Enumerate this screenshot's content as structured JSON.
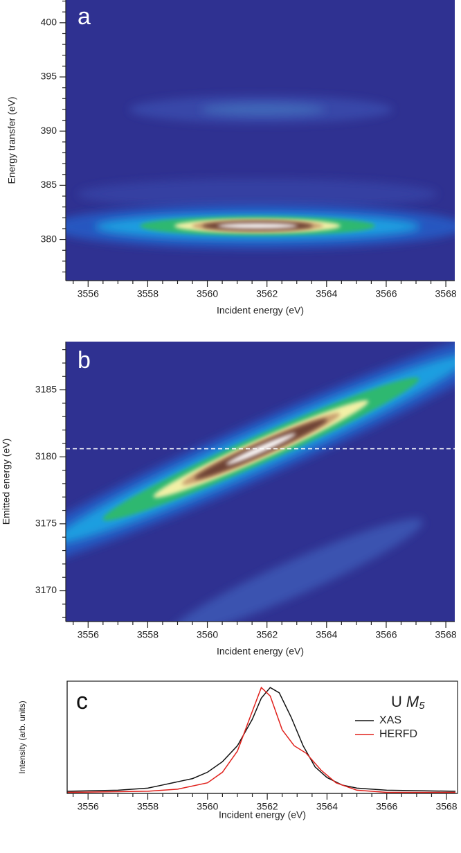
{
  "chart_data": [
    {
      "type": "heatmap",
      "panel_label": "a",
      "xlabel": "Incident energy (eV)",
      "ylabel": "Energy transfer (eV)",
      "xlim": [
        3555.25,
        3568.3
      ],
      "xticks": [
        3556,
        3558,
        3560,
        3562,
        3564,
        3566,
        3568
      ],
      "xminorticks": [
        3555.5,
        3556.5,
        3557,
        3557.5,
        3558.5,
        3559,
        3559.5,
        3560.5,
        3561,
        3561.5,
        3562.5,
        3563,
        3563.5,
        3564.5,
        3565,
        3565.5,
        3566.5,
        3567,
        3567.5
      ],
      "ylim": [
        376.2,
        402.1
      ],
      "yticks": [
        380,
        385,
        390,
        395,
        400
      ],
      "yminorticks": [
        377,
        378,
        379,
        381,
        382,
        383,
        384,
        386,
        387,
        388,
        389,
        391,
        392,
        393,
        394,
        396,
        397,
        398,
        399,
        401,
        402
      ]
    },
    {
      "type": "heatmap",
      "panel_label": "b",
      "xlabel": "Incident energy (eV)",
      "ylabel": "Emitted energy (eV)",
      "xlim": [
        3555.25,
        3568.3
      ],
      "xticks": [
        3556,
        3558,
        3560,
        3562,
        3564,
        3566,
        3568
      ],
      "xminorticks": [
        3555.5,
        3556.5,
        3557,
        3557.5,
        3558.5,
        3559,
        3559.5,
        3560.5,
        3561,
        3561.5,
        3562.5,
        3563,
        3563.5,
        3564.5,
        3565,
        3565.5,
        3566.5,
        3567,
        3567.5
      ],
      "ylim": [
        3167.7,
        3188.6
      ],
      "yticks": [
        3170,
        3175,
        3180,
        3185
      ],
      "yminorticks": [
        3168,
        3169,
        3171,
        3172,
        3173,
        3174,
        3176,
        3177,
        3178,
        3179,
        3181,
        3182,
        3183,
        3184,
        3186,
        3187,
        3188
      ],
      "hline": 3180.6
    },
    {
      "type": "line",
      "panel_label": "c",
      "xlabel": "Incident energy (eV)",
      "ylabel": "Intensity (arb. units)",
      "annotation_parts": [
        "U",
        "M",
        "5"
      ],
      "xlim": [
        3555.3,
        3568.37
      ],
      "xticks": [
        3556,
        3558,
        3560,
        3562,
        3564,
        3566,
        3568
      ],
      "xminorticks": [
        3555.5,
        3556.5,
        3557,
        3557.5,
        3558.5,
        3559,
        3559.5,
        3560.5,
        3561,
        3561.5,
        3562.5,
        3563,
        3563.5,
        3564.5,
        3565,
        3565.5,
        3566.5,
        3567,
        3567.5
      ],
      "ylim": [
        0,
        1.06
      ],
      "series": [
        {
          "name": "XAS",
          "color": "#111111",
          "x": [
            3555.3,
            3557,
            3558,
            3558.5,
            3559,
            3559.5,
            3560,
            3560.5,
            3561,
            3561.5,
            3561.8,
            3562.1,
            3562.4,
            3562.8,
            3563.2,
            3563.6,
            3564,
            3564.5,
            3565,
            3566,
            3568.3
          ],
          "values": [
            0.02,
            0.03,
            0.05,
            0.08,
            0.11,
            0.14,
            0.2,
            0.3,
            0.45,
            0.7,
            0.9,
            1.0,
            0.95,
            0.72,
            0.45,
            0.25,
            0.15,
            0.08,
            0.05,
            0.03,
            0.02
          ]
        },
        {
          "name": "HERFD",
          "color": "#e0201b",
          "x": [
            3555.3,
            3558,
            3559,
            3560,
            3560.5,
            3561,
            3561.4,
            3561.8,
            3562.1,
            3562.5,
            3562.9,
            3563.3,
            3563.8,
            3564.3,
            3565,
            3566,
            3568.3
          ],
          "values": [
            0.01,
            0.02,
            0.04,
            0.1,
            0.2,
            0.4,
            0.7,
            1.0,
            0.92,
            0.6,
            0.45,
            0.38,
            0.22,
            0.1,
            0.03,
            0.01,
            0.01
          ]
        }
      ]
    }
  ]
}
